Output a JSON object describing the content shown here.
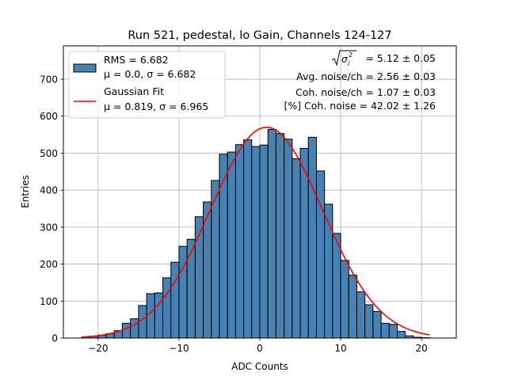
{
  "chart_data": {
    "type": "bar",
    "title": "Run 521, pedestal, lo Gain, Channels 124-127",
    "xlabel": "ADC Counts",
    "ylabel": "Entries",
    "xlim": [
      -24.3,
      24.3
    ],
    "ylim": [
      0,
      790
    ],
    "xticks": [
      -20,
      -10,
      0,
      10,
      20
    ],
    "yticks": [
      0,
      100,
      200,
      300,
      400,
      500,
      600,
      700
    ],
    "grid": true,
    "bar_color": "#4682b4",
    "bar_edge_color": "#000000",
    "fit_color": "#ff0000",
    "bin_width": 1,
    "bin_edges_start": -22,
    "values": [
      3,
      5,
      8,
      12,
      20,
      40,
      52,
      88,
      120,
      122,
      163,
      205,
      248,
      267,
      328,
      368,
      426,
      497,
      503,
      523,
      536,
      518,
      522,
      564,
      553,
      538,
      485,
      513,
      543,
      452,
      362,
      283,
      210,
      170,
      125,
      90,
      72,
      40,
      37,
      18,
      6,
      2,
      1
    ],
    "fit": {
      "mu": 0.819,
      "sigma": 6.965,
      "amplitude": 570,
      "x_range": [
        -22,
        21
      ]
    },
    "legend": {
      "position": "upper left",
      "entries": [
        {
          "kind": "patch",
          "line1": "RMS = 6.682",
          "line2": "μ = 0.0, σ = 6.682"
        },
        {
          "kind": "line",
          "line1": "Gaussian Fit",
          "line2": "μ = 0.819, σ = 6.965"
        }
      ]
    },
    "annotations": [
      "= 5.12 ± 0.05",
      "Avg. noise/ch = 2.56 ± 0.03",
      "Coh. noise/ch = 1.07 ± 0.03",
      "[%] Coh. noise = 42.02 ± 1.26"
    ]
  }
}
